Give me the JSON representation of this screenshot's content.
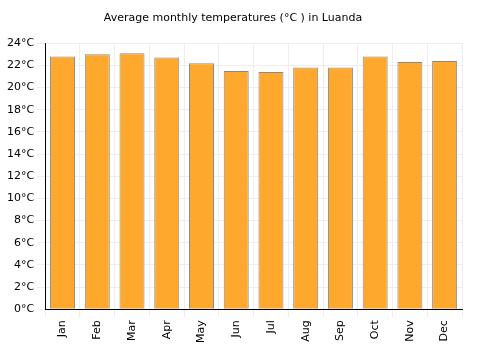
{
  "chart_data": {
    "type": "bar",
    "title": "Average monthly temperatures (°C ) in Luanda",
    "categories": [
      "Jan",
      "Feb",
      "Mar",
      "Apr",
      "May",
      "Jun",
      "Jul",
      "Aug",
      "Sep",
      "Oct",
      "Nov",
      "Dec"
    ],
    "values": [
      22.8,
      23.0,
      23.1,
      22.7,
      22.2,
      21.5,
      21.4,
      21.8,
      21.8,
      22.8,
      22.3,
      22.4
    ],
    "color": "#ffa82e",
    "ylim": [
      0,
      24
    ],
    "yticks": [
      {
        "value": 0,
        "label": "0°C"
      },
      {
        "value": 2,
        "label": "2°C"
      },
      {
        "value": 4,
        "label": "4°C"
      },
      {
        "value": 6,
        "label": "6°C"
      },
      {
        "value": 8,
        "label": "8°C"
      },
      {
        "value": 10,
        "label": "10°C"
      },
      {
        "value": 12,
        "label": "12°C"
      },
      {
        "value": 14,
        "label": "14°C"
      },
      {
        "value": 16,
        "label": "16°C"
      },
      {
        "value": 18,
        "label": "18°C"
      },
      {
        "value": 20,
        "label": "20°C"
      },
      {
        "value": 22,
        "label": "22°C"
      },
      {
        "value": 24,
        "label": "24°C"
      }
    ],
    "grid": true
  }
}
